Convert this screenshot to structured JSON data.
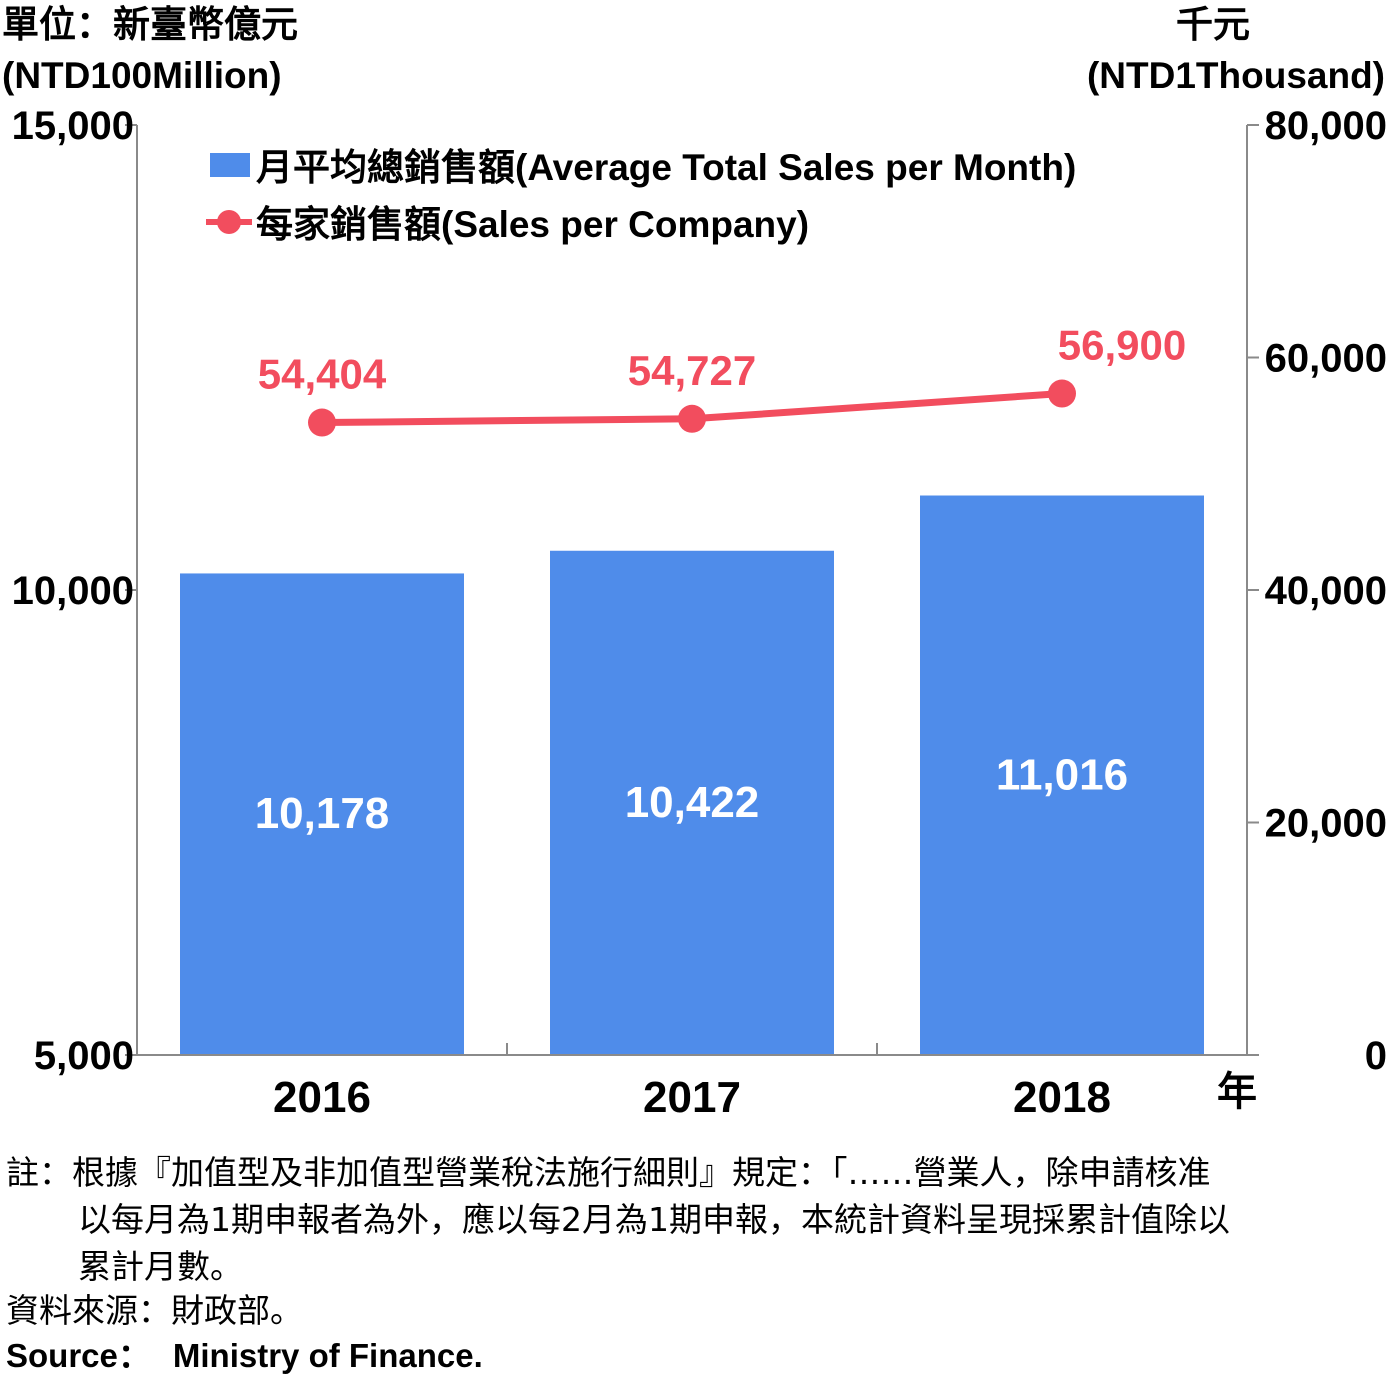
{
  "chart_data": {
    "type": "bar",
    "categories": [
      "2016",
      "2017",
      "2018"
    ],
    "x_unit": "年",
    "left_axis": {
      "unit_zh": "單位：新臺幣億元",
      "unit_en": "(NTD100Million)",
      "range": [
        5000,
        15000
      ],
      "ticks": [
        "5,000",
        "10,000",
        "15,000"
      ]
    },
    "right_axis": {
      "unit_zh": "千元",
      "unit_en": "(NTD1Thousand)",
      "range": [
        0,
        80000
      ],
      "ticks": [
        "0",
        "20,000",
        "40,000",
        "60,000",
        "80,000"
      ]
    },
    "series": [
      {
        "name": "月平均總銷售額(Average Total Sales per Month)",
        "type": "bar",
        "axis": "left",
        "color": "#4f8cea",
        "values": [
          10178,
          10422,
          11016
        ],
        "labels": [
          "10,178",
          "10,422",
          "11,016"
        ]
      },
      {
        "name": "每家銷售額(Sales per Company)",
        "type": "line",
        "axis": "right",
        "color": "#f24d5e",
        "values": [
          54404,
          54727,
          56900
        ],
        "labels": [
          "54,404",
          "54,727",
          "56,900"
        ]
      }
    ],
    "legend": "top-left"
  },
  "notes": {
    "line1": "註：根據『加值型及非加值型營業稅法施行細則』規定：「……營業人，除申請核准",
    "line2": "以每月為1期申報者為外，應以每2月為1期申報，本統計資料呈現採累計值除以",
    "line3": "累計月數。",
    "source_zh": "資料來源：財政部。",
    "source_label": "Source：",
    "source_en": "Ministry of Finance."
  }
}
